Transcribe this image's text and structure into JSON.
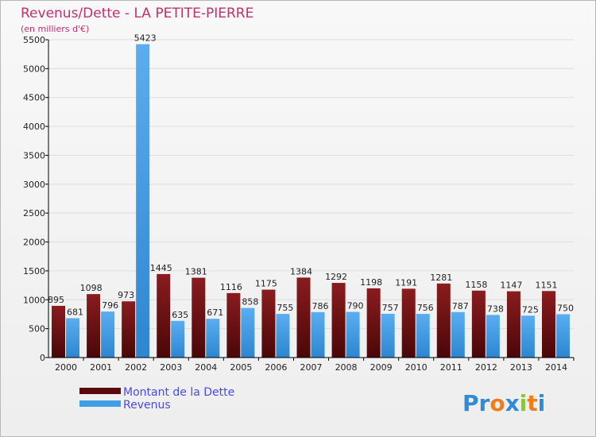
{
  "chart_data": {
    "type": "bar",
    "title": "Revenus/Dette - LA PETITE-PIERRE",
    "subtitle": "(en milliers d'€)",
    "categories": [
      "2000",
      "2001",
      "2002",
      "2003",
      "2004",
      "2005",
      "2006",
      "2007",
      "2008",
      "2009",
      "2010",
      "2011",
      "2012",
      "2013",
      "2014"
    ],
    "series": [
      {
        "name": "Montant de la Dette",
        "color": "#7a1416",
        "values": [
          895,
          1098,
          973,
          1445,
          1381,
          1116,
          1175,
          1384,
          1292,
          1198,
          1191,
          1281,
          1158,
          1147,
          1151
        ]
      },
      {
        "name": "Revenus",
        "color": "#3f9fe6",
        "values": [
          681,
          796,
          5423,
          635,
          671,
          858,
          755,
          786,
          790,
          757,
          756,
          787,
          738,
          725,
          750
        ]
      }
    ],
    "ylim": [
      0,
      5500
    ],
    "yticks": [
      0,
      500,
      1000,
      1500,
      2000,
      2500,
      3000,
      3500,
      4000,
      4500,
      5000,
      5500
    ],
    "grid": true,
    "legend_position": "bottom-left"
  },
  "colors": {
    "title": "#c0306a",
    "legend_text": "#4a4ae0",
    "axis": "#000000",
    "grid": "#dddddd"
  },
  "brand": {
    "letters": [
      {
        "ch": "P",
        "color": "#2f8ad8"
      },
      {
        "ch": "r",
        "color": "#2f8ad8"
      },
      {
        "ch": "o",
        "color": "#f07d1a"
      },
      {
        "ch": "x",
        "color": "#2f8ad8"
      },
      {
        "ch": "i",
        "color": "#8bc43f"
      },
      {
        "ch": "t",
        "color": "#f07d1a"
      },
      {
        "ch": "i",
        "color": "#2f8ad8"
      }
    ]
  }
}
